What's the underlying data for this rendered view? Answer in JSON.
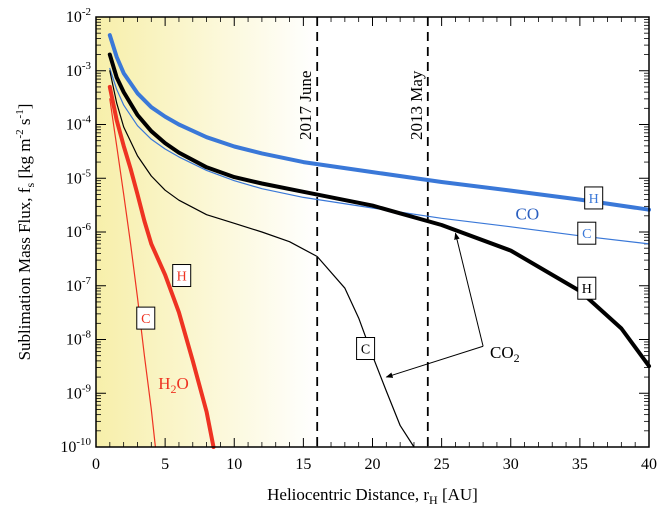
{
  "chart_data": {
    "type": "line",
    "xlabel": "Heliocentric Distance, r",
    "xlabel_sub": "H",
    "xlabel_unit": "[AU]",
    "ylabel_main": "Sublimation Mass Flux, f",
    "ylabel_sub": "s",
    "ylabel_unit_prefix": "[kg m",
    "ylabel_unit_exp1": "-2",
    "ylabel_unit_mid": " s",
    "ylabel_unit_exp2": "-1",
    "ylabel_unit_suffix": "]",
    "xlim": [
      0,
      40
    ],
    "ylim": [
      1e-10,
      0.01
    ],
    "yscale": "log",
    "x_ticks": [
      0,
      5,
      10,
      15,
      20,
      25,
      30,
      35,
      40
    ],
    "x_tick_labels": [
      "0",
      "5",
      "10",
      "15",
      "20",
      "25",
      "30",
      "35",
      "40"
    ],
    "y_ticks": [
      -10,
      -9,
      -8,
      -7,
      -6,
      -5,
      -4,
      -3,
      -2
    ],
    "y_tick_base": "10",
    "y_tick_exps": [
      "-10",
      "-9",
      "-8",
      "-7",
      "-6",
      "-5",
      "-4",
      "-3",
      "-2"
    ],
    "shaded_region": {
      "x_from": 0,
      "x_to": 16,
      "colors": [
        "#f7efaa",
        "#ffffff"
      ]
    },
    "vlines": [
      {
        "x": 16,
        "label": "2017 June"
      },
      {
        "x": 24,
        "label": "2013 May"
      }
    ],
    "series": [
      {
        "name": "CO H",
        "color": "#3a78d8",
        "width": 4,
        "points": [
          [
            1,
            0.0046
          ],
          [
            1.5,
            0.0018
          ],
          [
            2,
            0.0009
          ],
          [
            3,
            0.00038
          ],
          [
            4,
            0.00021
          ],
          [
            5,
            0.00014
          ],
          [
            6,
            0.0001
          ],
          [
            8,
            5.8e-05
          ],
          [
            10,
            3.9e-05
          ],
          [
            12,
            2.9e-05
          ],
          [
            15,
            2e-05
          ],
          [
            20,
            1.3e-05
          ],
          [
            25,
            8.5e-06
          ],
          [
            30,
            5.9e-06
          ],
          [
            35,
            4e-06
          ],
          [
            40,
            2.6e-06
          ]
        ]
      },
      {
        "name": "CO C",
        "color": "#3a78d8",
        "width": 1.2,
        "points": [
          [
            1,
            0.0011
          ],
          [
            1.5,
            0.00045
          ],
          [
            2,
            0.00023
          ],
          [
            3,
            9.5e-05
          ],
          [
            4,
            5.3e-05
          ],
          [
            5,
            3.5e-05
          ],
          [
            6,
            2.5e-05
          ],
          [
            8,
            1.4e-05
          ],
          [
            10,
            9e-06
          ],
          [
            12,
            6.4e-06
          ],
          [
            15,
            4.4e-06
          ],
          [
            20,
            2.8e-06
          ],
          [
            25,
            1.8e-06
          ],
          [
            30,
            1.25e-06
          ],
          [
            35,
            8.5e-07
          ],
          [
            40,
            6e-07
          ]
        ]
      },
      {
        "name": "CO2 H",
        "color": "#000000",
        "width": 4,
        "points": [
          [
            1,
            0.002
          ],
          [
            1.5,
            0.00075
          ],
          [
            2,
            0.0004
          ],
          [
            3,
            0.00015
          ],
          [
            4,
            7.5e-05
          ],
          [
            5,
            4.5e-05
          ],
          [
            6,
            3e-05
          ],
          [
            8,
            1.6e-05
          ],
          [
            10,
            1.05e-05
          ],
          [
            12,
            8e-06
          ],
          [
            15,
            5.6e-06
          ],
          [
            20,
            3.1e-06
          ],
          [
            25,
            1.35e-06
          ],
          [
            30,
            4.5e-07
          ],
          [
            35,
            8e-08
          ],
          [
            38,
            1.6e-08
          ],
          [
            40,
            3.2e-09
          ]
        ]
      },
      {
        "name": "CO2 C",
        "color": "#000000",
        "width": 1.2,
        "points": [
          [
            1,
            0.001
          ],
          [
            1.5,
            0.00025
          ],
          [
            2,
            9e-05
          ],
          [
            3,
            2.6e-05
          ],
          [
            4,
            1.1e-05
          ],
          [
            5,
            6e-06
          ],
          [
            6,
            3.9e-06
          ],
          [
            8,
            2.1e-06
          ],
          [
            10,
            1.45e-06
          ],
          [
            12,
            1e-06
          ],
          [
            14,
            6.6e-07
          ],
          [
            16,
            3.5e-07
          ],
          [
            18,
            9e-08
          ],
          [
            19,
            2.5e-08
          ],
          [
            20,
            5e-09
          ],
          [
            21,
            1.1e-09
          ],
          [
            22,
            2.5e-10
          ],
          [
            23,
            1e-10
          ]
        ]
      },
      {
        "name": "H2O H",
        "color": "#ee3322",
        "width": 4,
        "points": [
          [
            1,
            0.0005
          ],
          [
            1.5,
            0.00012
          ],
          [
            2,
            4e-05
          ],
          [
            2.5,
            1.5e-05
          ],
          [
            3,
            5e-06
          ],
          [
            3.5,
            1.6e-06
          ],
          [
            4,
            6e-07
          ],
          [
            5,
            1.6e-07
          ],
          [
            6,
            3.2e-08
          ],
          [
            7,
            4e-09
          ],
          [
            8,
            4.5e-10
          ],
          [
            8.5,
            1e-10
          ]
        ]
      },
      {
        "name": "H2O C",
        "color": "#ee3322",
        "width": 1.2,
        "points": [
          [
            1,
            0.0003
          ],
          [
            1.5,
            4e-05
          ],
          [
            2,
            5e-06
          ],
          [
            2.5,
            6e-07
          ],
          [
            3,
            6e-08
          ],
          [
            3.5,
            5e-09
          ],
          [
            4,
            5e-10
          ],
          [
            4.3,
            1e-10
          ]
        ]
      }
    ],
    "curve_labels": [
      {
        "text": "H",
        "x": 36,
        "y": 4.3e-06,
        "color": "#3a78d8"
      },
      {
        "text": "C",
        "x": 35.5,
        "y": 9.5e-07,
        "color": "#3a78d8"
      },
      {
        "text": "H",
        "x": 35.5,
        "y": 9e-08,
        "color": "#000000"
      },
      {
        "text": "C",
        "x": 19.5,
        "y": 6.8e-09,
        "color": "#000000"
      },
      {
        "text": "H",
        "x": 6.2,
        "y": 1.55e-07,
        "color": "#ee3322"
      },
      {
        "text": "C",
        "x": 3.6,
        "y": 2.5e-08,
        "color": "#ee3322"
      }
    ],
    "annotations": {
      "co": {
        "text": "CO",
        "x": 31.2,
        "y": 1.7e-06,
        "color": "#2a5fc0"
      },
      "co2": {
        "text": "CO",
        "sub": "2",
        "x": 28.5,
        "y": 5.8e-09,
        "color": "#000000",
        "arrow_from": [
          28,
          7.5e-09
        ],
        "arrow_to_1": [
          26,
          9.5e-07
        ],
        "arrow_to_2": [
          21,
          2e-09
        ]
      },
      "h2o": {
        "text": "H",
        "sub": "2",
        "suffix": "O",
        "x": 4.5,
        "y": 1.2e-09,
        "color": "#ee3322"
      }
    }
  }
}
